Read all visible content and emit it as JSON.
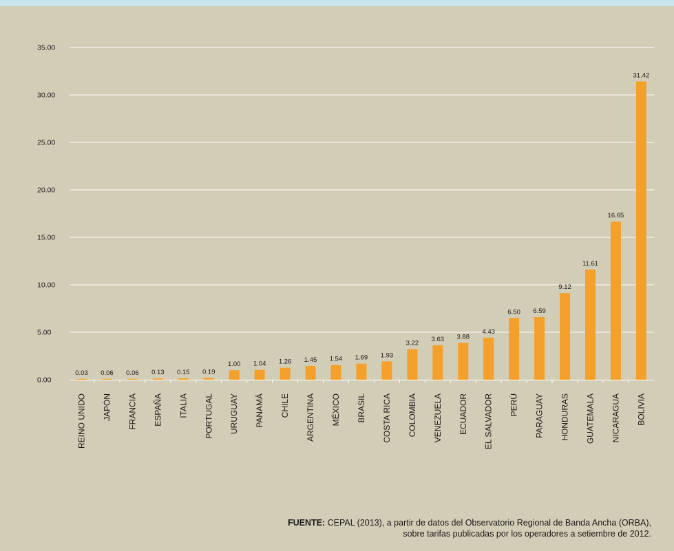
{
  "chart_data": {
    "type": "bar",
    "categories": [
      "REINO UNIDO",
      "JAPÓN",
      "FRANCIA",
      "ESPAÑA",
      "ITALIA",
      "PORTUGAL",
      "URUGUAY",
      "PANAMÁ",
      "CHILE",
      "ARGENTINA",
      "MÉXICO",
      "BRASIL",
      "COSTA RICA",
      "COLOMBIA",
      "VENEZUELA",
      "ECUADOR",
      "EL SALVADOR",
      "PERÚ",
      "PARAGUAY",
      "HONDURAS",
      "GUATEMALA",
      "NICARAGUA",
      "BOLIVIA"
    ],
    "values": [
      0.03,
      0.06,
      0.06,
      0.13,
      0.15,
      0.19,
      1.0,
      1.04,
      1.26,
      1.45,
      1.54,
      1.69,
      1.93,
      3.22,
      3.63,
      3.88,
      4.43,
      6.5,
      6.59,
      9.12,
      11.61,
      16.65,
      31.42
    ],
    "value_labels": [
      "0.03",
      "0.06",
      "0.06",
      "0.13",
      "0.15",
      "0.19",
      "1.00",
      "1.04",
      "1.26",
      "1.45",
      "1.54",
      "1.69",
      "1.93",
      "3.22",
      "3.63",
      "3.88",
      "4.43",
      "6.50",
      "6.59",
      "9.12",
      "11.61",
      "16.65",
      "31.42"
    ],
    "yticks": [
      "0.00",
      "5.00",
      "10.00",
      "15.00",
      "20.00",
      "25.00",
      "30.00",
      "35.00"
    ],
    "ylim": [
      0,
      35
    ],
    "grid": true,
    "bar_color": "#f5a02a",
    "title": "",
    "xlabel": "",
    "ylabel": ""
  },
  "source": {
    "label": "FUENTE:",
    "line1": " CEPAL (2013), a partir de datos del Observatorio Regional de Banda Ancha (ORBA),",
    "line2": "sobre tarifas publicadas por los operadores a setiembre de 2012."
  },
  "colors": {
    "background": "#d2cdb7",
    "top_band": "#c8e3ec",
    "gridline": "#ffffff",
    "text": "#1a1a1a"
  }
}
